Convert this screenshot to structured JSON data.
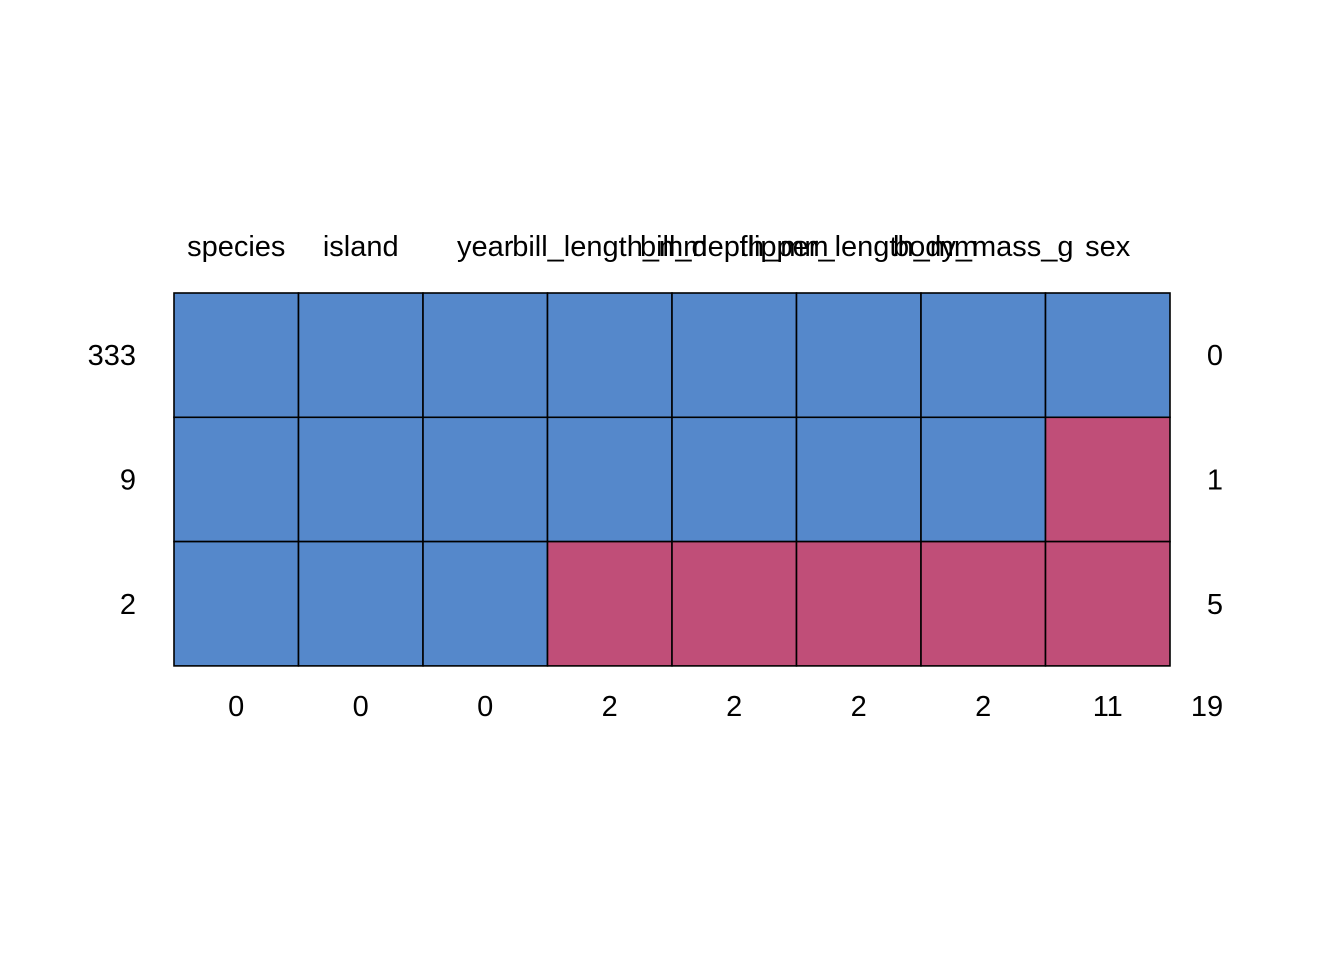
{
  "chart_data": {
    "type": "heatmap",
    "title": "",
    "variables": [
      "species",
      "island",
      "year",
      "bill_length_mm",
      "bill_depth_mm",
      "flipper_length_mm",
      "body_mass_g",
      "sex"
    ],
    "patterns": [
      {
        "count": "333",
        "n_missing": "0",
        "missing": [
          0,
          0,
          0,
          0,
          0,
          0,
          0,
          0
        ]
      },
      {
        "count": "9",
        "n_missing": "1",
        "missing": [
          0,
          0,
          0,
          0,
          0,
          0,
          0,
          1
        ]
      },
      {
        "count": "2",
        "n_missing": "5",
        "missing": [
          0,
          0,
          0,
          1,
          1,
          1,
          1,
          1
        ]
      }
    ],
    "missing_per_variable": [
      "0",
      "0",
      "0",
      "2",
      "2",
      "2",
      "2",
      "11"
    ],
    "total_missing": "19",
    "colors": {
      "observed": "#5588CB",
      "missing": "#C04E78"
    }
  }
}
